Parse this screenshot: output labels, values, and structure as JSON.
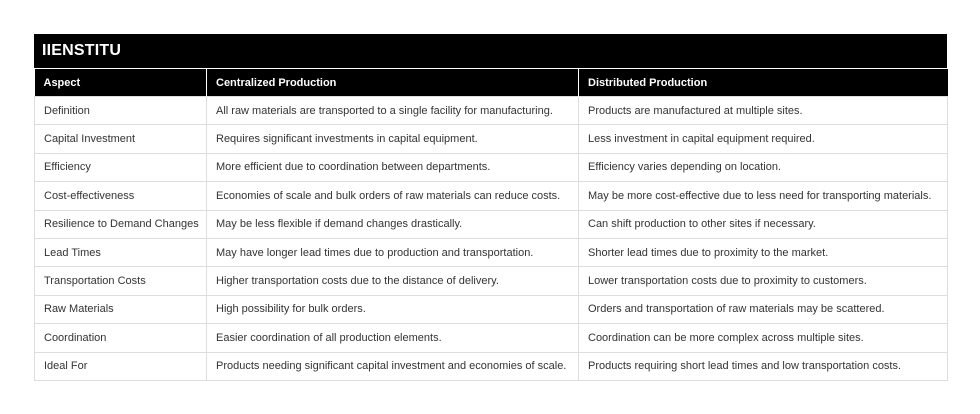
{
  "brand": "IIENSTITU",
  "table": {
    "headers": [
      "Aspect",
      "Centralized Production",
      "Distributed Production"
    ],
    "rows": [
      [
        "Definition",
        "All raw materials are transported to a single facility for manufacturing.",
        "Products are manufactured at multiple sites."
      ],
      [
        "Capital Investment",
        "Requires significant investments in capital equipment.",
        "Less investment in capital equipment required."
      ],
      [
        "Efficiency",
        "More efficient due to coordination between departments.",
        "Efficiency varies depending on location."
      ],
      [
        "Cost-effectiveness",
        "Economies of scale and bulk orders of raw materials can reduce costs.",
        "May be more cost-effective due to less need for transporting materials."
      ],
      [
        "Resilience to Demand Changes",
        "May be less flexible if demand changes drastically.",
        "Can shift production to other sites if necessary."
      ],
      [
        "Lead Times",
        "May have longer lead times due to production and transportation.",
        "Shorter lead times due to proximity to the market."
      ],
      [
        "Transportation Costs",
        "Higher transportation costs due to the distance of delivery.",
        "Lower transportation costs due to proximity to customers."
      ],
      [
        "Raw Materials",
        "High possibility for bulk orders.",
        "Orders and transportation of raw materials may be scattered."
      ],
      [
        "Coordination",
        "Easier coordination of all production elements.",
        "Coordination can be more complex across multiple sites."
      ],
      [
        "Ideal For",
        "Products needing significant capital investment and economies of scale.",
        "Products requiring short lead times and low transportation costs."
      ]
    ]
  }
}
